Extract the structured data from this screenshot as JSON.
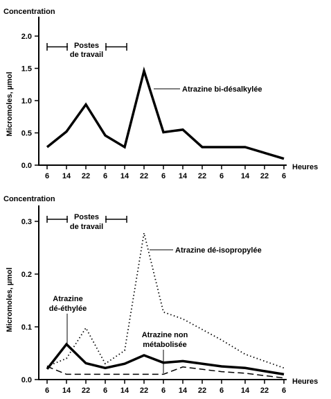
{
  "chart_data": [
    {
      "type": "line",
      "title": "Concentration",
      "ylabel": "Micromoles, µmol",
      "xlabel": "Heures",
      "categories": [
        "6",
        "14",
        "22",
        "6",
        "14",
        "22",
        "6",
        "14",
        "22",
        "6",
        "14",
        "22",
        "6"
      ],
      "ylim": [
        0,
        2.0
      ],
      "yticks": [
        "0.0",
        "0.5",
        "1.0",
        "1.5",
        "2.0"
      ],
      "work_shifts_label": "Postes de travail",
      "series": [
        {
          "name": "Atrazine bi-désalkylée",
          "style": "solid-thick",
          "values": [
            0.28,
            0.52,
            0.94,
            0.46,
            0.28,
            1.46,
            0.51,
            0.55,
            0.28,
            0.28,
            0.28,
            null,
            0.1
          ]
        }
      ]
    },
    {
      "type": "line",
      "title": "Concentration",
      "ylabel": "Micromoles, µmol",
      "xlabel": "Heures",
      "categories": [
        "6",
        "14",
        "22",
        "6",
        "14",
        "22",
        "6",
        "14",
        "22",
        "6",
        "14",
        "22",
        "6"
      ],
      "ylim": [
        0,
        0.3
      ],
      "yticks": [
        "0.0",
        "0.1",
        "0.2",
        "0.3"
      ],
      "work_shifts_label": "Postes de travail",
      "series": [
        {
          "name": "Atrazine dé-isopropylée",
          "style": "dotted",
          "values": [
            0.025,
            0.04,
            0.098,
            0.03,
            0.055,
            0.278,
            0.128,
            0.115,
            null,
            0.075,
            0.048,
            null,
            0.022
          ]
        },
        {
          "name": "Atrazine dé-éthylée",
          "style": "solid-thick",
          "values": [
            0.02,
            0.067,
            0.031,
            0.022,
            0.03,
            0.046,
            0.032,
            0.035,
            null,
            0.025,
            0.022,
            null,
            0.01
          ]
        },
        {
          "name": "Atrazine non métabolisée",
          "style": "dashed",
          "values": [
            0.025,
            0.01,
            0.01,
            0.01,
            0.01,
            0.01,
            0.01,
            0.024,
            null,
            0.015,
            0.012,
            null,
            0.003
          ]
        }
      ]
    }
  ],
  "labels": {
    "top_title": "Concentration",
    "top_ylabel": "Micromoles, µmol",
    "top_xlabel": "Heures",
    "top_shift_line1": "Postes",
    "top_shift_line2": "de travail",
    "top_series_label": "Atrazine bi-désalkylée",
    "bot_title": "Concentration",
    "bot_ylabel": "Micromoles, µmol",
    "bot_xlabel": "Heures",
    "bot_shift_line1": "Postes",
    "bot_shift_line2": "de travail",
    "bot_label_isopropyl": "Atrazine dé-isopropylée",
    "bot_label_ethyl_line1": "Atrazine",
    "bot_label_ethyl_line2": "dé-éthylée",
    "bot_label_non_line1": "Atrazine non",
    "bot_label_non_line2": "métabolisée"
  }
}
